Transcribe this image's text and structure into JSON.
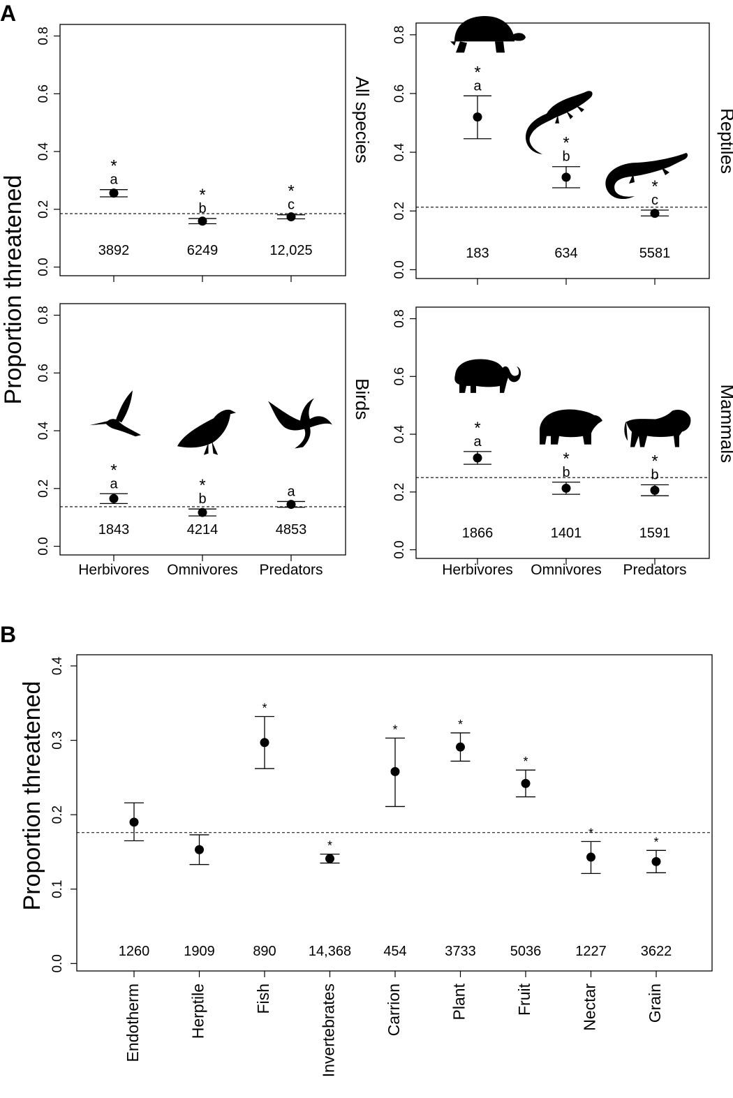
{
  "panel_labels": {
    "a": "A",
    "b": "B"
  },
  "y_axis_label": "Proportion threatened",
  "chart_data": [
    {
      "type": "scatter",
      "panel": "A",
      "facet": "All species",
      "categories": [
        "Herbivores",
        "Omnivores",
        "Predators"
      ],
      "show_x_tick_labels": false,
      "series": [
        {
          "values": [
            0.256,
            0.159,
            0.174
          ],
          "ci_low": [
            0.243,
            0.15,
            0.167
          ],
          "ci_high": [
            0.268,
            0.168,
            0.181
          ]
        }
      ],
      "n": [
        "3892",
        "6249",
        "12,025"
      ],
      "significance": [
        "*",
        "*",
        "*"
      ],
      "letters": [
        "a",
        "b",
        "c"
      ],
      "baseline": 0.185,
      "ylim": [
        -0.03,
        0.84
      ],
      "yticks": [
        "0.0",
        "0.2",
        "0.4",
        "0.6",
        "0.8"
      ],
      "silhouettes": [
        null,
        null,
        null
      ]
    },
    {
      "type": "scatter",
      "panel": "A",
      "facet": "Reptiles",
      "categories": [
        "Herbivores",
        "Omnivores",
        "Predators"
      ],
      "show_x_tick_labels": false,
      "series": [
        {
          "values": [
            0.52,
            0.315,
            0.192
          ],
          "ci_low": [
            0.446,
            0.279,
            0.183
          ],
          "ci_high": [
            0.592,
            0.351,
            0.203
          ]
        }
      ],
      "n": [
        "183",
        "634",
        "5581"
      ],
      "significance": [
        "*",
        "*",
        "*"
      ],
      "letters": [
        "a",
        "b",
        "c"
      ],
      "baseline": 0.213,
      "ylim": [
        -0.03,
        0.84
      ],
      "yticks": [
        "0.0",
        "0.2",
        "0.4",
        "0.6",
        "0.8"
      ],
      "silhouettes": [
        "tortoise",
        "iguana",
        "crocodile"
      ]
    },
    {
      "type": "scatter",
      "panel": "A",
      "facet": "Birds",
      "categories": [
        "Herbivores",
        "Omnivores",
        "Predators"
      ],
      "show_x_tick_labels": true,
      "series": [
        {
          "values": [
            0.165,
            0.117,
            0.145
          ],
          "ci_low": [
            0.148,
            0.105,
            0.135
          ],
          "ci_high": [
            0.182,
            0.129,
            0.155
          ]
        }
      ],
      "n": [
        "1843",
        "4214",
        "4853"
      ],
      "significance": [
        "*",
        "*",
        ""
      ],
      "letters": [
        "a",
        "b",
        "a"
      ],
      "baseline": 0.137,
      "ylim": [
        -0.03,
        0.84
      ],
      "yticks": [
        "0.0",
        "0.2",
        "0.4",
        "0.6",
        "0.8"
      ],
      "silhouettes": [
        "hummingbird",
        "crow",
        "eagle"
      ]
    },
    {
      "type": "scatter",
      "panel": "A",
      "facet": "Mammals",
      "categories": [
        "Herbivores",
        "Omnivores",
        "Predators"
      ],
      "show_x_tick_labels": true,
      "series": [
        {
          "values": [
            0.318,
            0.213,
            0.206
          ],
          "ci_low": [
            0.296,
            0.192,
            0.187
          ],
          "ci_high": [
            0.34,
            0.234,
            0.225
          ]
        }
      ],
      "n": [
        "1866",
        "1401",
        "1591"
      ],
      "significance": [
        "*",
        "*",
        "*"
      ],
      "letters": [
        "a",
        "b",
        "b"
      ],
      "baseline": 0.25,
      "ylim": [
        -0.03,
        0.84
      ],
      "yticks": [
        "0.0",
        "0.2",
        "0.4",
        "0.6",
        "0.8"
      ],
      "silhouettes": [
        "elephant",
        "bear",
        "lion"
      ]
    },
    {
      "type": "scatter",
      "panel": "B",
      "categories": [
        "Endotherm",
        "Herptile",
        "Fish",
        "Invertebrates",
        "Carrion",
        "Plant",
        "Fruit",
        "Nectar",
        "Grain"
      ],
      "series": [
        {
          "values": [
            0.19,
            0.153,
            0.297,
            0.141,
            0.258,
            0.291,
            0.242,
            0.143,
            0.137
          ],
          "ci_low": [
            0.165,
            0.133,
            0.262,
            0.135,
            0.211,
            0.272,
            0.224,
            0.121,
            0.122
          ],
          "ci_high": [
            0.216,
            0.173,
            0.332,
            0.147,
            0.303,
            0.31,
            0.26,
            0.164,
            0.152
          ]
        }
      ],
      "n": [
        "1260",
        "1909",
        "890",
        "14,368",
        "454",
        "3733",
        "5036",
        "1227",
        "3622"
      ],
      "significance": [
        "",
        "",
        "*",
        "*",
        "*",
        "*",
        "*",
        "*",
        "*"
      ],
      "baseline": 0.176,
      "ylim": [
        -0.01,
        0.415
      ],
      "yticks": [
        "0.0",
        "0.1",
        "0.2",
        "0.3",
        "0.4"
      ]
    }
  ]
}
